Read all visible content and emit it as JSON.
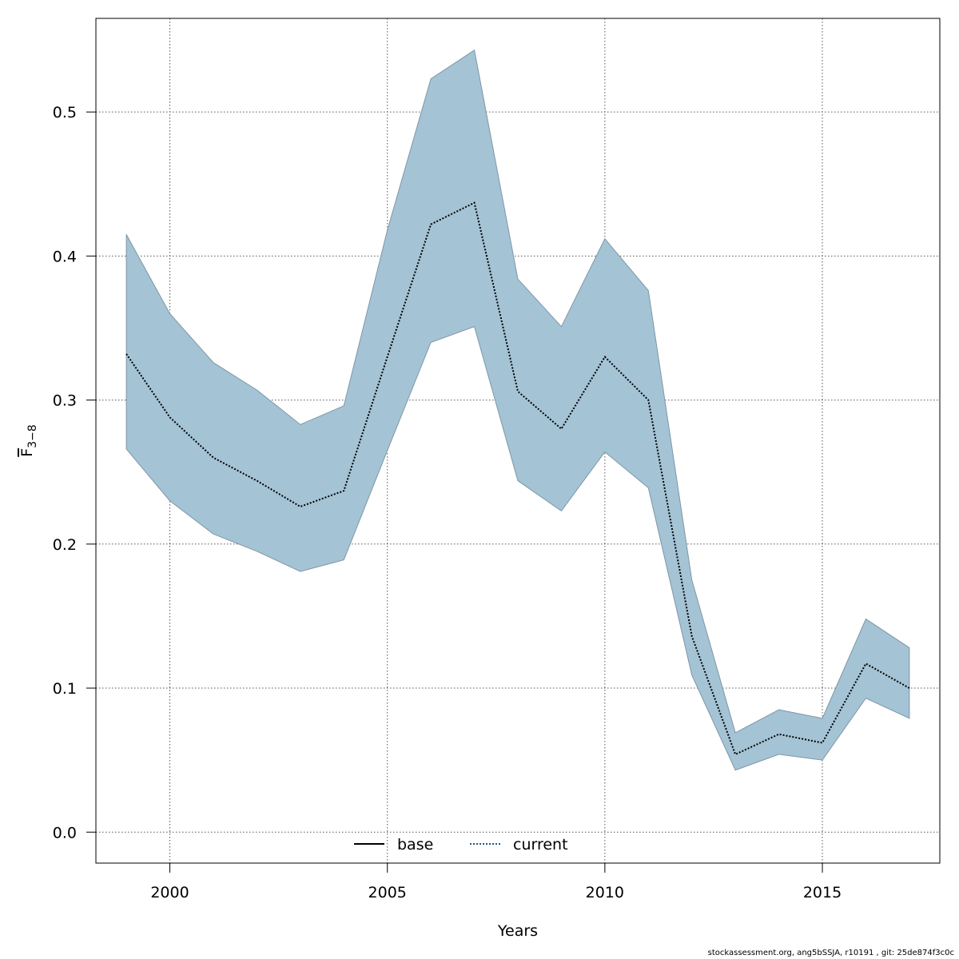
{
  "chart_data": {
    "type": "area",
    "xlabel": "Years",
    "ylabel": {
      "base": "F",
      "sub": "3−8"
    },
    "xlim": [
      1998.3,
      2017.7
    ],
    "ylim": [
      -0.0215,
      0.565
    ],
    "xticks": [
      2000,
      2005,
      2010,
      2015
    ],
    "yticks": [
      0.0,
      0.1,
      0.2,
      0.3,
      0.4,
      0.5
    ],
    "ytick_labels": [
      "0.0",
      "0.1",
      "0.2",
      "0.3",
      "0.4",
      "0.5"
    ],
    "grid": true,
    "legend": {
      "placement": "bottom",
      "entries": [
        {
          "label": "base",
          "style": "solid",
          "color": "#000000"
        },
        {
          "label": "current",
          "style": "dotted",
          "color": "#1f5a8a"
        }
      ]
    },
    "x": [
      1999,
      2000,
      2001,
      2002,
      2003,
      2004,
      2005,
      2006,
      2007,
      2008,
      2009,
      2010,
      2011,
      2012,
      2013,
      2014,
      2015,
      2016,
      2017
    ],
    "series": [
      {
        "name": "current",
        "style": "dotted",
        "values": [
          0.332,
          0.288,
          0.26,
          0.244,
          0.226,
          0.237,
          0.33,
          0.422,
          0.437,
          0.306,
          0.28,
          0.33,
          0.3,
          0.136,
          0.054,
          0.068,
          0.062,
          0.117,
          0.1
        ]
      }
    ],
    "confidence_band": {
      "upper": [
        0.415,
        0.36,
        0.326,
        0.307,
        0.283,
        0.296,
        0.418,
        0.523,
        0.543,
        0.384,
        0.351,
        0.412,
        0.376,
        0.175,
        0.069,
        0.085,
        0.079,
        0.148,
        0.128
      ],
      "lower": [
        0.266,
        0.23,
        0.207,
        0.195,
        0.181,
        0.189,
        0.265,
        0.34,
        0.351,
        0.244,
        0.223,
        0.264,
        0.239,
        0.109,
        0.043,
        0.054,
        0.05,
        0.093,
        0.079
      ]
    },
    "colors": {
      "band_fill": "#a4c3d5",
      "band_stroke": "#7f97a5",
      "grid": "#555555",
      "axis": "#000000"
    }
  },
  "footer": "stockassessment.org, ang5bSSJA, r10191 , git: 25de874f3c0c"
}
